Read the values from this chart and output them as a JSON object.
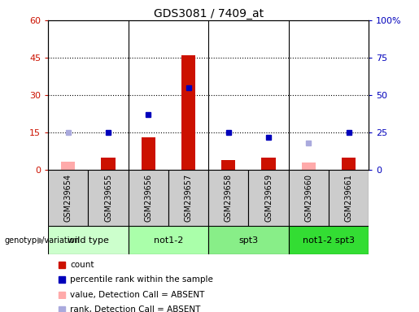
{
  "title": "GDS3081 / 7409_at",
  "samples": [
    "GSM239654",
    "GSM239655",
    "GSM239656",
    "GSM239657",
    "GSM239658",
    "GSM239659",
    "GSM239660",
    "GSM239661"
  ],
  "groups": [
    {
      "label": "wild type",
      "color": "#ccffcc",
      "samples": [
        0,
        1
      ]
    },
    {
      "label": "not1-2",
      "color": "#aaffaa",
      "samples": [
        2,
        3
      ]
    },
    {
      "label": "spt3",
      "color": "#88ee88",
      "samples": [
        4,
        5
      ]
    },
    {
      "label": "not1-2 spt3",
      "color": "#33dd33",
      "samples": [
        6,
        7
      ]
    }
  ],
  "count_values": [
    null,
    5,
    13,
    46,
    4,
    5,
    null,
    5
  ],
  "count_absent": [
    3.5,
    null,
    null,
    null,
    null,
    null,
    3,
    null
  ],
  "rank_values": [
    null,
    25,
    37,
    55,
    25,
    22,
    null,
    25
  ],
  "rank_absent": [
    25,
    null,
    null,
    null,
    null,
    null,
    18,
    null
  ],
  "ylim_left": [
    0,
    60
  ],
  "ylim_right": [
    0,
    100
  ],
  "yticks_left": [
    0,
    15,
    30,
    45,
    60
  ],
  "yticks_right": [
    0,
    25,
    50,
    75,
    100
  ],
  "ytick_labels_left": [
    "0",
    "15",
    "30",
    "45",
    "60"
  ],
  "ytick_labels_right": [
    "0",
    "25",
    "50",
    "75",
    "100%"
  ],
  "count_color": "#cc1100",
  "count_absent_color": "#ffaaaa",
  "rank_color": "#0000bb",
  "rank_absent_color": "#aaaadd",
  "bg_color": "#ffffff",
  "sample_bg": "#cccccc",
  "legend_items": [
    [
      "#cc1100",
      "count"
    ],
    [
      "#0000bb",
      "percentile rank within the sample"
    ],
    [
      "#ffaaaa",
      "value, Detection Call = ABSENT"
    ],
    [
      "#aaaadd",
      "rank, Detection Call = ABSENT"
    ]
  ]
}
